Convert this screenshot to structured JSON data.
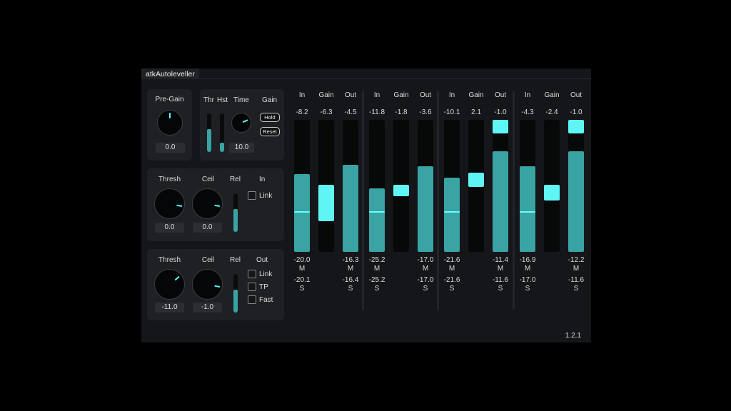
{
  "window": {
    "title": "atkAutoleveller",
    "version": "1.2.1"
  },
  "pregain": {
    "label": "Pre-Gain",
    "value": "0.0",
    "knob": 0.5
  },
  "timing": {
    "thr_label": "Thr",
    "hst_label": "Hst",
    "time_label": "Time",
    "gain_label": "Gain",
    "thr_level": 0.6,
    "hst_level": 0.25,
    "time_value": "10.0",
    "time_knob": 0.75,
    "hold_label": "Hold",
    "reset_label": "Reset"
  },
  "in_section": {
    "thresh_label": "Thresh",
    "ceil_label": "Ceil",
    "rel_label": "Rel",
    "title": "In",
    "thresh_value": "0.0",
    "ceil_value": "0.0",
    "thresh_knob": 0.87,
    "ceil_knob": 0.87,
    "rel_level": 0.6,
    "link_label": "Link",
    "link_checked": false
  },
  "out_section": {
    "thresh_label": "Thresh",
    "ceil_label": "Ceil",
    "rel_label": "Rel",
    "title": "Out",
    "thresh_value": "-11.0",
    "ceil_value": "-1.0",
    "thresh_knob": 0.68,
    "ceil_knob": 0.87,
    "rel_level": 0.6,
    "link_label": "Link",
    "tp_label": "TP",
    "fast_label": "Fast"
  },
  "colors": {
    "accent": "#5ff5f5",
    "meter": "#3aa3a3"
  },
  "meter_labels": {
    "in": "In",
    "gain": "Gain",
    "out": "Out",
    "m": "M",
    "s": "S"
  },
  "channels": [
    {
      "in": {
        "peak": "-8.2",
        "m": "-20.0",
        "s": "-20.1",
        "level": 0.59,
        "marker": 0.3
      },
      "gain": {
        "value": "-6.3",
        "top": 0.51,
        "bottom": 0.23
      },
      "out": {
        "peak": "-4.5",
        "m": "-16.3",
        "s": "-16.4",
        "level": 0.66,
        "clip": false
      }
    },
    {
      "in": {
        "peak": "-11.8",
        "m": "-25.2",
        "s": "-25.2",
        "level": 0.48,
        "marker": 0.3
      },
      "gain": {
        "value": "-1.8",
        "top": 0.51,
        "bottom": 0.42
      },
      "out": {
        "peak": "-3.6",
        "m": "-17.0",
        "s": "-17.0",
        "level": 0.65,
        "clip": false
      }
    },
    {
      "in": {
        "peak": "-10.1",
        "m": "-21.6",
        "s": "-21.6",
        "level": 0.56,
        "marker": 0.3
      },
      "gain": {
        "value": "2.1",
        "top": 0.6,
        "bottom": 0.49
      },
      "out": {
        "peak": "-1.0",
        "m": "-11.4",
        "s": "-11.6",
        "level": 0.76,
        "clip": true
      }
    },
    {
      "in": {
        "peak": "-4.3",
        "m": "-16.9",
        "s": "-17.0",
        "level": 0.65,
        "marker": 0.3
      },
      "gain": {
        "value": "-2.4",
        "top": 0.51,
        "bottom": 0.39
      },
      "out": {
        "peak": "-1.0",
        "m": "-12.2",
        "s": "-11.6",
        "level": 0.76,
        "clip": true
      }
    }
  ]
}
